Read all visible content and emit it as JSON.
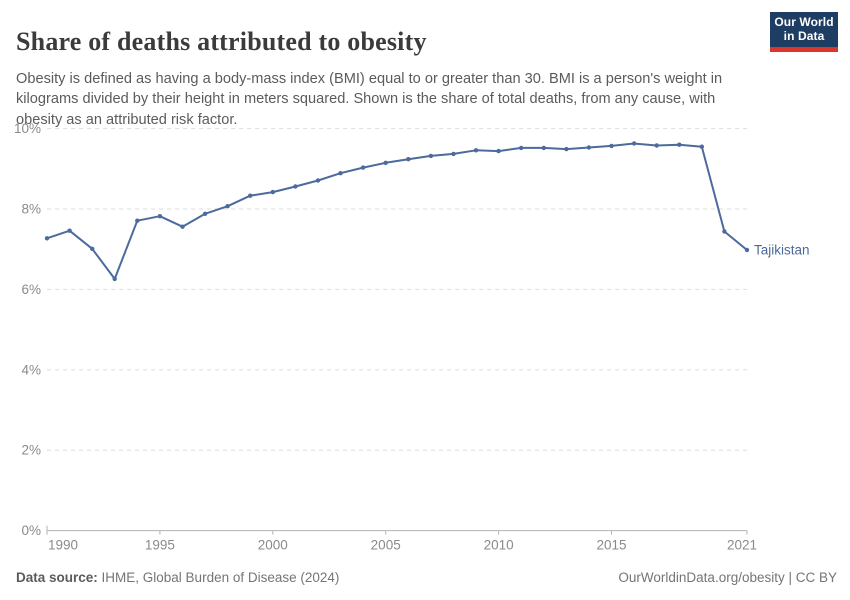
{
  "header": {
    "title": "Share of deaths attributed to obesity",
    "subtitle": "Obesity is defined as having a body-mass index (BMI) equal to or greater than 30. BMI is a person's weight in kilograms divided by their height in meters squared. Shown is the share of total deaths, from any cause, with obesity as an attributed risk factor.",
    "logo": {
      "line1": "Our World",
      "line2": "in Data",
      "bg_color": "#1d3d63",
      "accent_color": "#dc352c"
    }
  },
  "chart_data": {
    "type": "line",
    "title": "Share of deaths attributed to obesity",
    "xlabel": "",
    "ylabel": "",
    "grid": "horizontal-dashed",
    "legend_position": "end-of-line-label",
    "xlim": [
      1990,
      2021
    ],
    "ylim": [
      0,
      10
    ],
    "x_ticks": [
      1990,
      1995,
      2000,
      2005,
      2010,
      2015,
      2021
    ],
    "y_ticks": [
      0,
      2,
      4,
      6,
      8,
      10
    ],
    "y_tick_suffix": "%",
    "x": [
      1990,
      1991,
      1992,
      1993,
      1994,
      1995,
      1996,
      1997,
      1998,
      1999,
      2000,
      2001,
      2002,
      2003,
      2004,
      2005,
      2006,
      2007,
      2008,
      2009,
      2010,
      2011,
      2012,
      2013,
      2014,
      2015,
      2016,
      2017,
      2018,
      2019,
      2020,
      2021
    ],
    "series": [
      {
        "name": "Tajikistan",
        "color": "#4c6a9c",
        "values": [
          7.27,
          7.46,
          7.01,
          6.26,
          7.71,
          7.82,
          7.56,
          7.88,
          8.07,
          8.33,
          8.42,
          8.56,
          8.71,
          8.89,
          9.03,
          9.15,
          9.24,
          9.32,
          9.37,
          9.46,
          9.44,
          9.52,
          9.52,
          9.49,
          9.53,
          9.57,
          9.63,
          9.58,
          9.6,
          9.55,
          7.44,
          6.98
        ]
      }
    ]
  },
  "axis_style": {
    "tick_label_color": "#8a8a8a",
    "gridline_color": "#dedede",
    "baseline_color": "#b3b3b3"
  },
  "footer": {
    "source_label": "Data source:",
    "source_text": " IHME, Global Burden of Disease (2024)",
    "right_text": "OurWorldinData.org/obesity | CC BY"
  }
}
